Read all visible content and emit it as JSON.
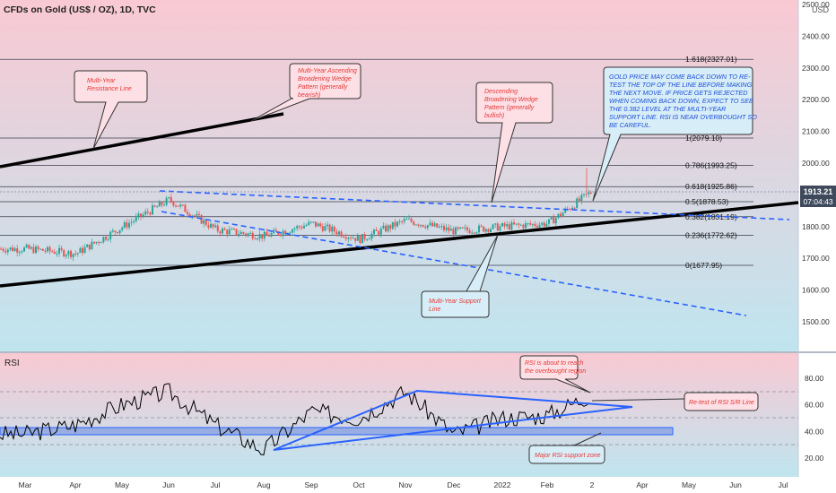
{
  "header": {
    "title": "CFDs on Gold (US$ / OZ), 1D, TVC"
  },
  "colors": {
    "bg_top": "#f9c9d3",
    "bg_bottom": "#bfe5ef",
    "candle_up": "#26a69a",
    "candle_down": "#ef5350",
    "trendline": "#000000",
    "dashed": "#2962ff",
    "rsi_line": "#000000",
    "rsi_zone": "#6f8fe0",
    "note_text": "#1e4fd8",
    "callout_text": "#e53935",
    "price_tag": "#3e4a5c"
  },
  "chart_data": [
    {
      "type": "line",
      "title": "CFDs on Gold (US$ / OZ), 1D, TVC",
      "ylabel": "USD",
      "ylim": [
        1380,
        2500
      ],
      "y_ticks": [
        "2500.00",
        "2400.00",
        "2300.00",
        "2200.00",
        "2100.00",
        "2000.00",
        "1900.00",
        "1800.00",
        "1700.00",
        "1600.00",
        "1500.00"
      ],
      "x_ticks": [
        "Mar",
        "Apr",
        "May",
        "Jun",
        "Jul",
        "Aug",
        "Sep",
        "Oct",
        "Nov",
        "Dec",
        "2022",
        "Feb",
        "2",
        "Apr",
        "May",
        "Jun",
        "Jul"
      ],
      "price_tag": {
        "value": "1913.21",
        "countdown": "07:04:43"
      },
      "series": [
        {
          "x": [
            "Mar",
            "Apr",
            "May",
            "Jun",
            "Jul",
            "Aug",
            "Sep",
            "Oct",
            "Nov",
            "Dec",
            "2022",
            "Feb",
            "2"
          ],
          "values": [
            1730,
            1715,
            1800,
            1885,
            1790,
            1770,
            1810,
            1760,
            1820,
            1785,
            1800,
            1810,
            1913
          ]
        }
      ],
      "fib_levels": [
        {
          "label": "1.618(2327.01)",
          "value": 2327.01
        },
        {
          "label": "1(2079.10)",
          "value": 2079.1
        },
        {
          "label": "0.786(1993.25)",
          "value": 1993.25
        },
        {
          "label": "0.618(1925.86)",
          "value": 1925.86
        },
        {
          "label": "0.5(1878.53)",
          "value": 1878.53
        },
        {
          "label": "0.382(1831.19)",
          "value": 1831.19
        },
        {
          "label": "0.236(1772.62)",
          "value": 1772.62
        },
        {
          "label": "0(1677.95)",
          "value": 1677.95
        }
      ],
      "annotations": [
        "Multi-Year Resistance Line",
        "Multi-Year Ascending Broadening Wedge Pattern (generally bearish)",
        "Descending Broadening Wedge Pattern (generally bullish)",
        "GOLD PRICE MAY COME BACK DOWN TO RE-TEST THE TOP OF THE LINE BEFORE MAKING THE NEXT MOVE. IF PRICE GETS REJECTED WHEN COMING BACK DOWN, EXPECT TO SEE THE 0.382 LEVEL AT THE MULTI-YEAR SUPPORT LINE. RSI IS NEAR OVERBOUGHT SO BE CAREFUL.",
        "Multi-Year Support Line"
      ]
    },
    {
      "type": "line",
      "title": "RSI",
      "ylim": [
        10,
        95
      ],
      "y_ticks": [
        "80.00",
        "60.00",
        "40.00",
        "20.00"
      ],
      "overbought": 70,
      "oversold": 30,
      "support_zone": [
        38,
        42
      ],
      "series": [
        {
          "x": [
            "Mar",
            "Apr",
            "May",
            "Jun",
            "Jul",
            "Aug",
            "Sep",
            "Oct",
            "Nov",
            "Dec",
            "2022",
            "Feb",
            "2"
          ],
          "values": [
            38,
            45,
            60,
            70,
            45,
            26,
            55,
            50,
            70,
            38,
            50,
            52,
            68
          ]
        }
      ],
      "annotations": [
        "RSI is about to reach the overbought region",
        "Re-test of RSI S/R Line",
        "Major RSI support zone"
      ]
    }
  ],
  "notes": {
    "resistance": [
      "Multi-Year",
      "Resistance Line"
    ],
    "asc_wedge": [
      "Multi-Year Ascending",
      "Broadening Wedge",
      "Pattern (generally",
      "bearish)"
    ],
    "desc_wedge": [
      "Descending",
      "Broadening Wedge",
      "Pattern (generally",
      "bullish)"
    ],
    "big_note": [
      "GOLD PRICE MAY COME BACK DOWN TO RE-",
      "TEST THE TOP OF THE LINE BEFORE MAKING",
      "THE NEXT MOVE. IF PRICE GETS REJECTED",
      "WHEN COMING BACK DOWN, EXPECT TO SEE",
      "THE 0.382 LEVEL AT THE MULTI-YEAR",
      "SUPPORT LINE. RSI IS NEAR OVERBOUGHT SO",
      "BE CAREFUL."
    ],
    "support": [
      "Multi-Year Support",
      "Line"
    ],
    "rsi_overbought": [
      "RSI is about to reach",
      "the overbought region"
    ],
    "rsi_retest": [
      "Re-test of RSI S/R Line"
    ],
    "rsi_support": [
      "Major RSI support zone"
    ]
  }
}
